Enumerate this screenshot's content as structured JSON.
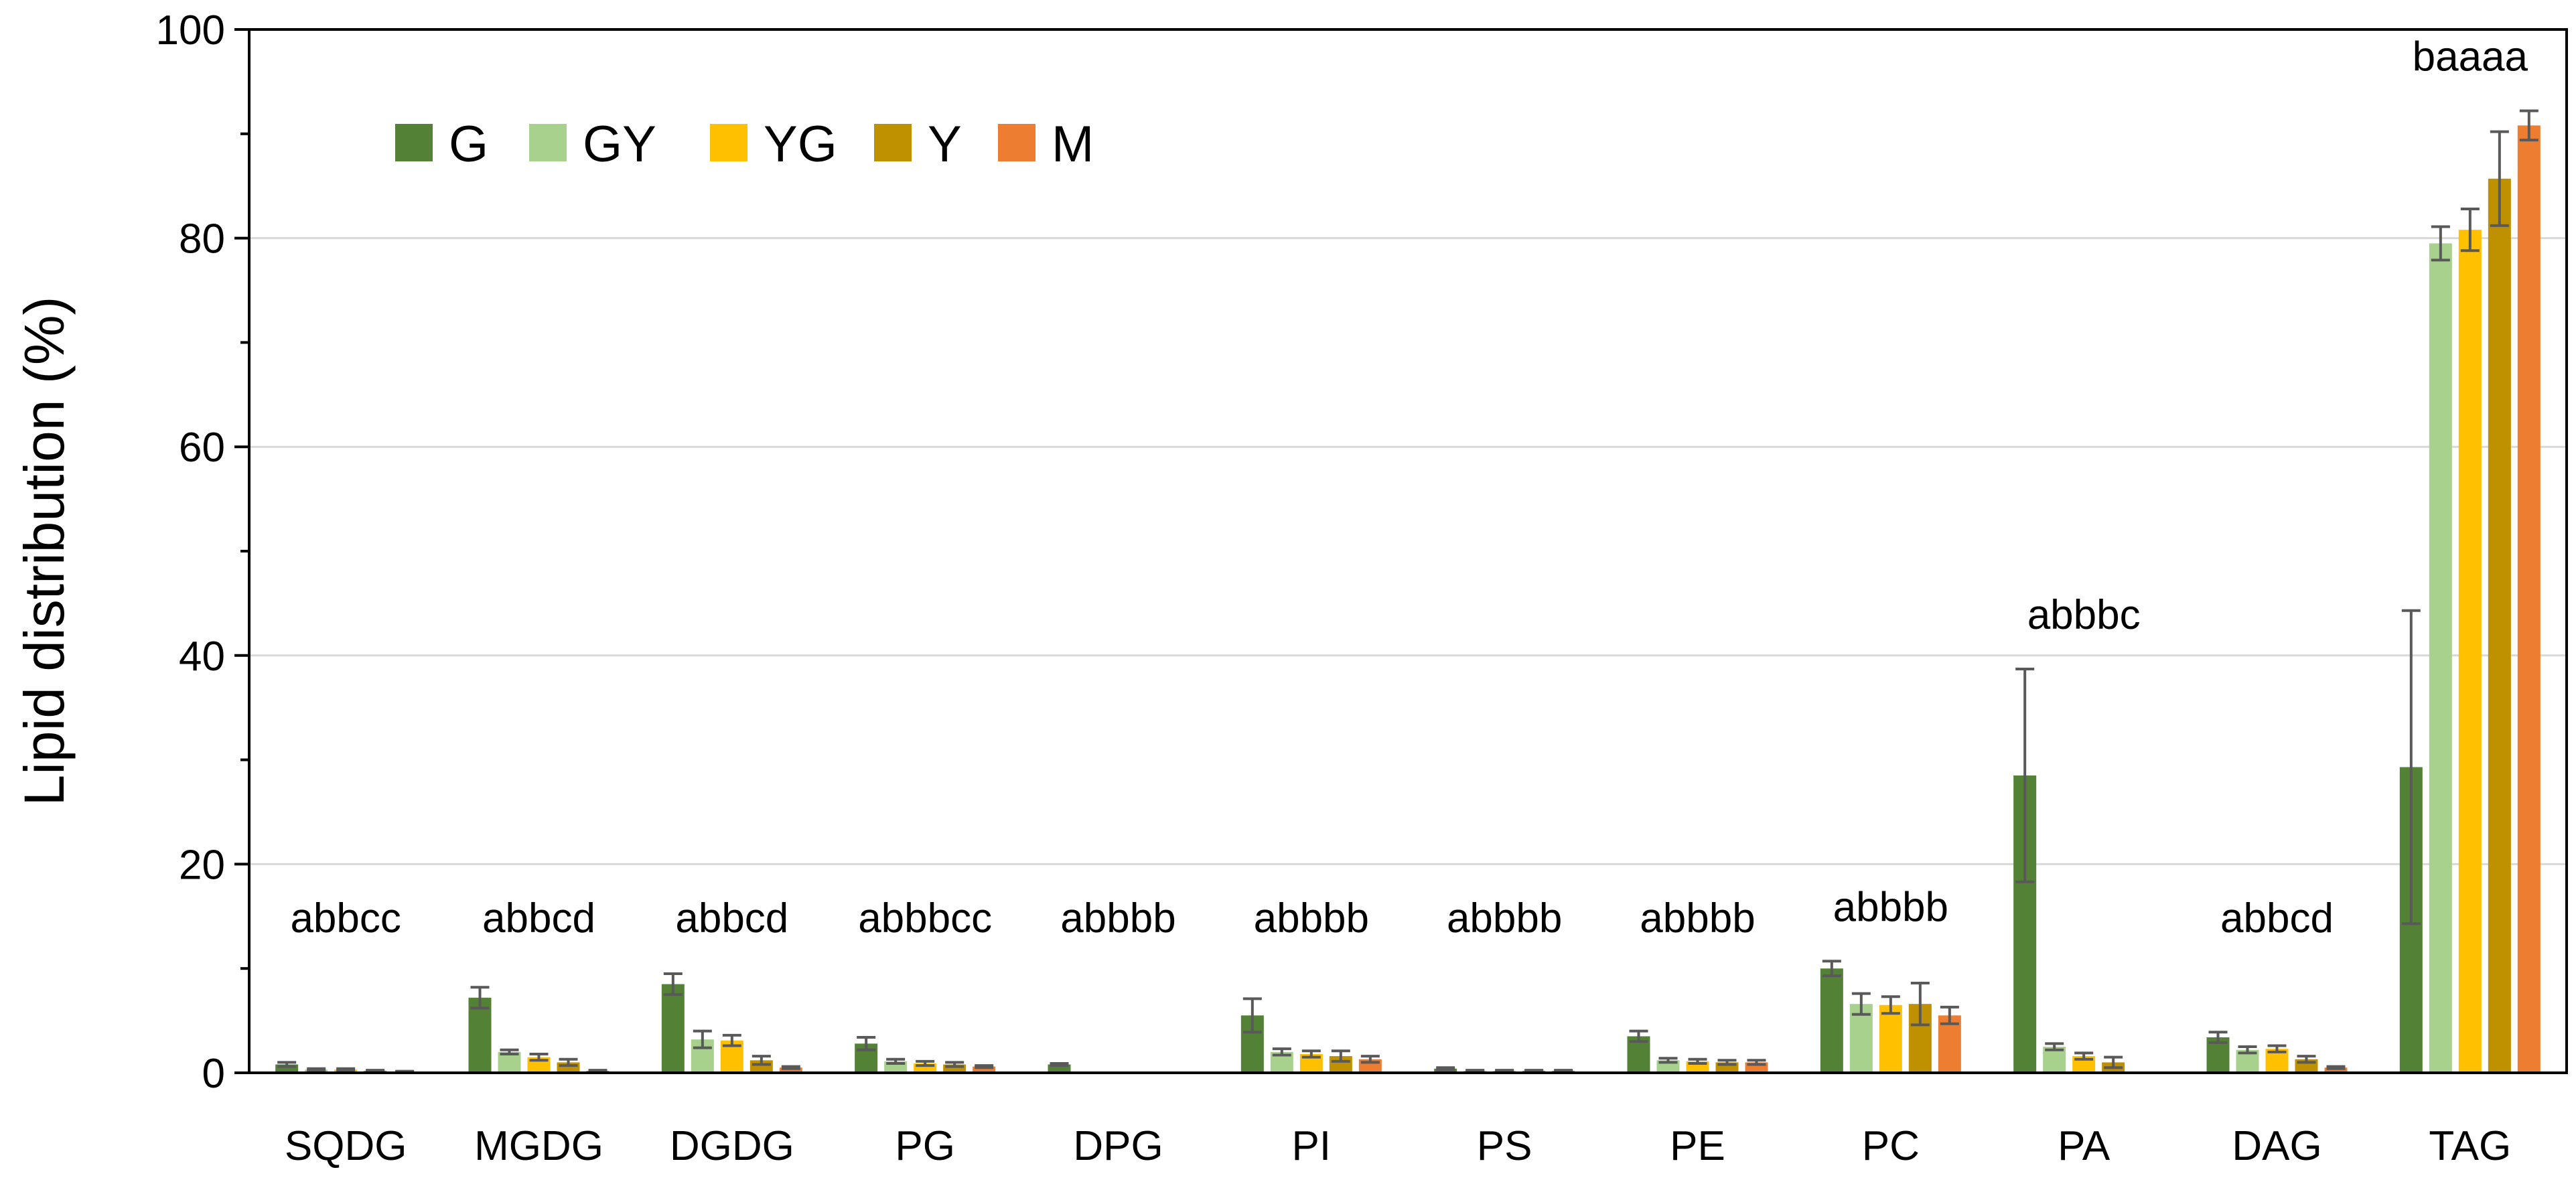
{
  "chart_data": {
    "type": "bar",
    "title": "",
    "xlabel": "",
    "ylabel": "Lipid distribution (%)",
    "ylim": [
      0,
      100
    ],
    "yticks": [
      "0",
      "20",
      "40",
      "60",
      "80",
      "100"
    ],
    "grid": true,
    "legend_position": "top-left",
    "categories": [
      "SQDG",
      "MGDG",
      "DGDG",
      "PG",
      "DPG",
      "PI",
      "PS",
      "PE",
      "PC",
      "PA",
      "DAG",
      "TAG"
    ],
    "annotations": [
      "abbcc",
      "abbcd",
      "abbcd",
      "abbbcc",
      "abbbb",
      "abbbb",
      "abbbb",
      "abbbb",
      "abbbb",
      "abbbc",
      "abbcd",
      "baaaa"
    ],
    "series": [
      {
        "name": "G",
        "color": "#538135",
        "values": [
          0.8,
          7.2,
          8.5,
          2.8,
          0.8,
          5.5,
          0.4,
          3.5,
          10.0,
          28.5,
          3.4,
          29.3
        ],
        "errors": [
          0.2,
          1.0,
          1.0,
          0.6,
          0.1,
          1.6,
          0.1,
          0.5,
          0.7,
          10.2,
          0.5,
          15.0
        ]
      },
      {
        "name": "GY",
        "color": "#A9D18E",
        "values": [
          0.3,
          2.0,
          3.2,
          1.1,
          0.0,
          2.0,
          0.2,
          1.2,
          6.6,
          2.5,
          2.2,
          79.5
        ],
        "errors": [
          0.1,
          0.2,
          0.8,
          0.2,
          0.0,
          0.3,
          0.05,
          0.2,
          1.0,
          0.3,
          0.3,
          1.6
        ]
      },
      {
        "name": "YG",
        "color": "#FFC000",
        "values": [
          0.3,
          1.5,
          3.1,
          0.9,
          0.0,
          1.8,
          0.2,
          1.1,
          6.5,
          1.6,
          2.3,
          80.8
        ],
        "errors": [
          0.1,
          0.3,
          0.5,
          0.2,
          0.0,
          0.3,
          0.05,
          0.2,
          0.8,
          0.3,
          0.3,
          2.0
        ]
      },
      {
        "name": "Y",
        "color": "#BF9000",
        "values": [
          0.2,
          1.0,
          1.2,
          0.8,
          0.0,
          1.6,
          0.2,
          1.0,
          6.6,
          1.0,
          1.3,
          85.7
        ],
        "errors": [
          0.05,
          0.3,
          0.4,
          0.2,
          0.0,
          0.5,
          0.05,
          0.2,
          2.0,
          0.5,
          0.3,
          4.5
        ]
      },
      {
        "name": "M",
        "color": "#ED7D31",
        "values": [
          0.1,
          0.2,
          0.5,
          0.6,
          0.0,
          1.3,
          0.2,
          1.0,
          5.5,
          0.0,
          0.5,
          90.8
        ],
        "errors": [
          0.05,
          0.05,
          0.1,
          0.1,
          0.0,
          0.3,
          0.05,
          0.2,
          0.8,
          0.0,
          0.1,
          1.4
        ]
      }
    ]
  }
}
